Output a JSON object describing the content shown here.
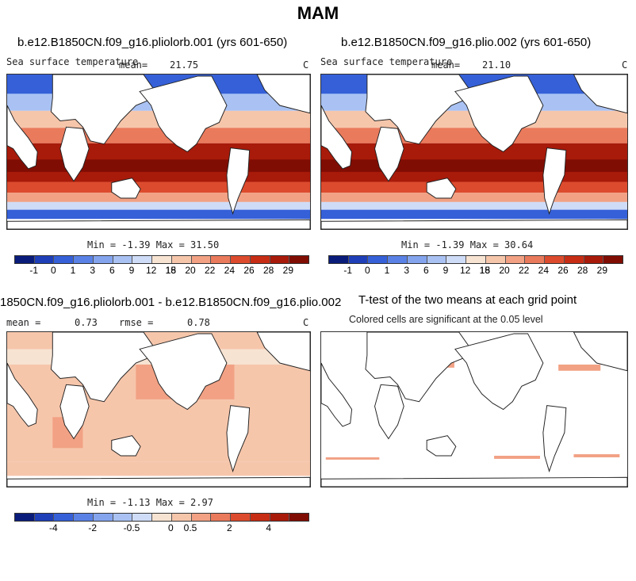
{
  "main_title": "MAM",
  "panels": {
    "p1": {
      "title": "b.e12.B1850CN.f09_g16.pliolorb.001 (yrs 601-650)",
      "variable": "Sea surface temperature",
      "mean_label": "mean=",
      "mean_value": "21.75",
      "unit": "C",
      "minmax": "Min =   -1.39 Max =   31.50"
    },
    "p2": {
      "title": "b.e12.B1850CN.f09_g16.plio.002 (yrs 601-650)",
      "variable": "Sea surface temperature",
      "mean_label": "mean=",
      "mean_value": "21.10",
      "unit": "C",
      "minmax": "Min =   -1.39 Max =   30.64"
    },
    "p3": {
      "title": "1850CN.f09_g16.pliolorb.001 - b.e12.B1850CN.f09_g16.plio.002",
      "mean_label": "mean =",
      "mean_value": "0.73",
      "rmse_label": "rmse =",
      "rmse_value": "0.78",
      "unit": "C",
      "minmax": "Min =   -1.13 Max =    2.97"
    },
    "p4": {
      "title": "T-test of the two means at each grid point",
      "subtitle": "Colored cells are significant at the 0.05 level"
    }
  },
  "colorbar_sst": {
    "colors": [
      "#0a1c7a",
      "#1f3fb8",
      "#3560d8",
      "#5a82e6",
      "#84a4ee",
      "#a9c2f3",
      "#cfdcf7",
      "#f7e3d2",
      "#f6c6ab",
      "#f2a184",
      "#ea7a5c",
      "#dc4b2d",
      "#c62d14",
      "#a81a0a",
      "#800d03"
    ],
    "labels": [
      "-1",
      "0",
      "1",
      "3",
      "6",
      "9",
      "12",
      "15",
      "18",
      "20",
      "22",
      "24",
      "26",
      "28",
      "29"
    ]
  },
  "colorbar_diff": {
    "colors": [
      "#0a1c7a",
      "#1f3fb8",
      "#3560d8",
      "#5a82e6",
      "#84a4ee",
      "#a9c2f3",
      "#cfdcf7",
      "#f7e3d2",
      "#f6c6ab",
      "#f2a184",
      "#ea7a5c",
      "#dc4b2d",
      "#c62d14",
      "#a81a0a",
      "#800d03"
    ],
    "labels": [
      "-4",
      "-2",
      "-0.5",
      "0",
      "0.5",
      "2",
      "4"
    ]
  }
}
